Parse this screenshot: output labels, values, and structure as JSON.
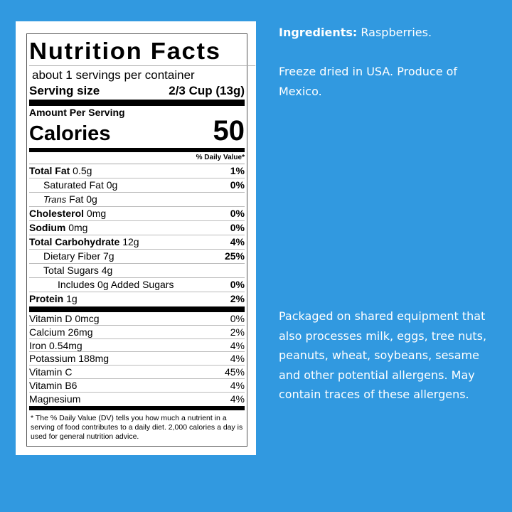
{
  "label": {
    "title": "Nutrition Facts",
    "servings": "about 1 servings per container",
    "serving_size_label": "Serving size",
    "serving_size_value": "2/3 Cup (13g)",
    "amount_per_serving": "Amount Per Serving",
    "calories_label": "Calories",
    "calories_value": "50",
    "daily_value_header": "% Daily Value*",
    "nutrients": [
      {
        "bold": "Total Fat",
        "amount": " 0.5g",
        "pct": "1%"
      },
      {
        "name": "Saturated Fat 0g",
        "pct": "0%"
      },
      {
        "italic": "Trans",
        "name": " Fat 0g",
        "pct": ""
      },
      {
        "bold": "Cholesterol",
        "amount": " 0mg",
        "pct": "0%"
      },
      {
        "bold": "Sodium",
        "amount": " 0mg",
        "pct": "0%"
      },
      {
        "bold": "Total Carbohydrate",
        "amount": " 12g",
        "pct": "4%"
      },
      {
        "name": "Dietary Fiber 7g",
        "pct": "25%"
      },
      {
        "name": "Total Sugars 4g",
        "pct": ""
      },
      {
        "name": "Includes 0g Added Sugars",
        "pct": "0%"
      },
      {
        "bold": "Protein",
        "amount": " 1g",
        "pct": "2%"
      }
    ],
    "vitamins": [
      {
        "name": "Vitamin D 0mcg",
        "pct": "0%"
      },
      {
        "name": "Calcium 26mg",
        "pct": "2%"
      },
      {
        "name": "Iron 0.54mg",
        "pct": "4%"
      },
      {
        "name": "Potassium 188mg",
        "pct": "4%"
      },
      {
        "name": "Vitamin C",
        "pct": "45%"
      },
      {
        "name": "Vitamin B6",
        "pct": "4%"
      },
      {
        "name": "Magnesium",
        "pct": "4%"
      }
    ],
    "footnote": "* The % Daily Value (DV) tells you how much a nutrient in a serving of food contributes to a daily diet. 2,000 calories a day is used for general nutrition advice."
  },
  "info": {
    "ingredients_label": "Ingredients:",
    "ingredients_value": " Raspberries.",
    "origin": "Freeze dried in USA. Produce of Mexico.",
    "allergens": "Packaged on shared equipment that also processes milk, eggs, tree nuts, peanuts, wheat, soybeans, sesame and other potential allergens. May contain traces of these allergens."
  },
  "colors": {
    "background": "#3199e0",
    "panel": "#ffffff",
    "text_on_blue": "#ffffff"
  }
}
